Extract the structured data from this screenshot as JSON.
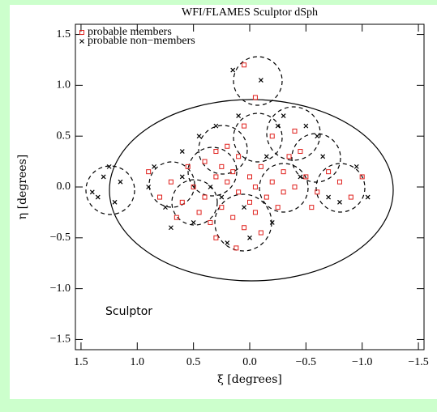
{
  "chart_data": {
    "type": "scatter",
    "title": "WFI/FLAMES Sculptor dSph",
    "xlabel": "ξ [degrees]",
    "ylabel": "η [degrees]",
    "annotation": "Sculptor",
    "xlim": [
      1.55,
      -1.55
    ],
    "ylim": [
      -1.6,
      1.6
    ],
    "xticks": [
      1.5,
      {
        "value": 1,
        "label": "1.0"
      },
      0.5,
      {
        "value": 0,
        "label": "0.0"
      },
      {
        "value": -0.5,
        "label": "−0.5"
      },
      {
        "value": -1,
        "label": "−1.0"
      },
      {
        "value": -1.5,
        "label": "−1.5"
      }
    ],
    "yticks": [
      {
        "value": -1.5,
        "label": "−1.5"
      },
      {
        "value": -1,
        "label": "−1.0"
      },
      {
        "value": -0.5,
        "label": "−0.5"
      },
      {
        "value": 0,
        "label": "0.0"
      },
      0.5,
      {
        "value": 1,
        "label": "1.0"
      },
      1.5
    ],
    "legend": "upper left",
    "series": [
      {
        "name": "probable members",
        "color": "#e0201c",
        "marker": "square",
        "x": [
          0.3,
          0.2,
          0.1,
          0.0,
          -0.1,
          -0.2,
          -0.3,
          -0.4,
          -0.5,
          -0.6,
          0.4,
          0.5,
          0.6,
          0.7,
          0.25,
          0.15,
          0.05,
          -0.05,
          -0.15,
          -0.25,
          -0.35,
          -0.45,
          0.1,
          0.2,
          0.3,
          -0.2,
          -0.4,
          0.05,
          0.35,
          0.45,
          -0.7,
          -0.8,
          -0.9,
          -1.0,
          0.8,
          0.9,
          0.15,
          -0.05,
          0.0,
          0.12,
          0.3,
          -0.1,
          0.05,
          -0.05,
          0.55,
          -0.55,
          0.65,
          0.25,
          -0.3,
          0.4
        ],
        "y": [
          0.1,
          0.05,
          -0.05,
          0.1,
          0.2,
          0.05,
          0.15,
          0.0,
          0.1,
          -0.05,
          -0.1,
          0.0,
          -0.15,
          0.05,
          -0.2,
          -0.3,
          -0.4,
          -0.25,
          -0.1,
          -0.2,
          0.3,
          0.35,
          0.3,
          0.4,
          0.35,
          0.5,
          0.55,
          0.6,
          -0.35,
          -0.25,
          0.15,
          0.05,
          -0.1,
          0.1,
          -0.1,
          0.15,
          0.15,
          0.0,
          -0.15,
          -0.6,
          -0.5,
          -0.45,
          1.2,
          0.88,
          0.2,
          -0.2,
          -0.3,
          0.2,
          -0.05,
          0.25
        ]
      },
      {
        "name": "probable non−members",
        "color": "#000000",
        "marker": "cross",
        "x": [
          1.3,
          1.4,
          1.25,
          1.2,
          1.35,
          1.15,
          0.9,
          0.75,
          0.85,
          0.6,
          0.5,
          0.2,
          0.0,
          -0.2,
          -0.5,
          -0.6,
          -0.3,
          0.1,
          0.3,
          0.45,
          -0.8,
          -1.05,
          -0.95,
          -0.1,
          0.15,
          0.35,
          -0.15,
          0.05,
          -0.45,
          0.7,
          -0.7,
          0.6,
          0.25,
          -0.25,
          -0.65
        ],
        "y": [
          0.1,
          -0.05,
          0.2,
          -0.15,
          -0.1,
          0.05,
          0.0,
          -0.2,
          0.2,
          0.35,
          -0.35,
          -0.55,
          -0.5,
          -0.35,
          0.6,
          0.5,
          0.7,
          0.7,
          0.6,
          0.5,
          -0.15,
          -0.1,
          0.2,
          1.05,
          1.15,
          0.0,
          0.3,
          -0.2,
          0.1,
          -0.4,
          -0.1,
          0.1,
          -0.1,
          0.6,
          0.3
        ]
      }
    ]
  }
}
